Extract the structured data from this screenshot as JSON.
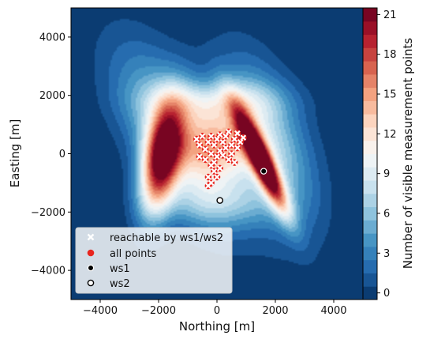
{
  "chart_data": {
    "type": "heatmap",
    "title": "",
    "xlabel": "Northing [m]",
    "ylabel": "Easting [m]",
    "xlim": [
      -5000,
      5000
    ],
    "ylim": [
      -5000,
      5000
    ],
    "xticks": [
      -4000,
      -2000,
      0,
      2000,
      4000
    ],
    "yticks": [
      4000,
      2000,
      0,
      -2000,
      -4000
    ],
    "xtick_labels": [
      "−4000",
      "−2000",
      "0",
      "2000",
      "4000"
    ],
    "ytick_labels": [
      "4000",
      "2000",
      "0",
      "−2000",
      "−4000"
    ],
    "colorbar": {
      "label": "Number of visible measurement points",
      "min": 0,
      "max": 22,
      "levels": 22,
      "ticks": [
        0,
        3,
        6,
        9,
        12,
        15,
        18,
        21
      ],
      "tick_labels": [
        "0",
        "3",
        "6",
        "9",
        "12",
        "15",
        "18",
        "21"
      ],
      "colormap": "RdBu_r"
    },
    "contour_field": {
      "background_value": 0,
      "blobs": [
        {
          "cx": -1900,
          "cy": -200,
          "sx": 450,
          "sy": 1300,
          "rot": -10,
          "amp": 20
        },
        {
          "cx": -1400,
          "cy": 600,
          "sx": 950,
          "sy": 2200,
          "rot": 30,
          "amp": 8
        },
        {
          "cx": 1500,
          "cy": -200,
          "sx": 250,
          "sy": 1300,
          "rot": 25,
          "amp": 22
        },
        {
          "cx": 1700,
          "cy": 300,
          "sx": 900,
          "sy": 2000,
          "rot": 20,
          "amp": 8
        },
        {
          "cx": 0,
          "cy": 300,
          "sx": 900,
          "sy": 900,
          "rot": 0,
          "amp": 10
        },
        {
          "cx": 0,
          "cy": 1800,
          "sx": 1500,
          "sy": 500,
          "rot": 0,
          "amp": 5
        },
        {
          "cx": 0,
          "cy": -1700,
          "sx": 1300,
          "sy": 600,
          "rot": 0,
          "amp": 4
        }
      ]
    },
    "series": [
      {
        "name": "reachable by ws1/ws2",
        "marker": "x",
        "color": "#ffffff",
        "points": [
          [
            -700,
            500
          ],
          [
            -600,
            300
          ],
          [
            -500,
            600
          ],
          [
            -400,
            150
          ],
          [
            -300,
            400
          ],
          [
            -200,
            600
          ],
          [
            -100,
            300
          ],
          [
            0,
            500
          ],
          [
            100,
            650
          ],
          [
            200,
            400
          ],
          [
            300,
            600
          ],
          [
            400,
            750
          ],
          [
            500,
            300
          ],
          [
            600,
            500
          ],
          [
            700,
            700
          ],
          [
            800,
            400
          ],
          [
            900,
            550
          ],
          [
            -600,
            -100
          ],
          [
            -400,
            -200
          ],
          [
            -200,
            0
          ],
          [
            -100,
            -300
          ],
          [
            0,
            -100
          ],
          [
            100,
            100
          ],
          [
            200,
            -50
          ],
          [
            300,
            200
          ],
          [
            400,
            -200
          ],
          [
            500,
            0
          ],
          [
            600,
            -300
          ],
          [
            -300,
            -800
          ],
          [
            -200,
            -1000
          ],
          [
            -100,
            -600
          ],
          [
            0,
            -800
          ],
          [
            100,
            -500
          ],
          [
            -300,
            -1100
          ],
          [
            -200,
            -400
          ],
          [
            700,
            200
          ]
        ]
      },
      {
        "name": "all points",
        "marker": "o",
        "color": "#e8251e",
        "points": [
          [
            -700,
            500
          ],
          [
            -600,
            300
          ],
          [
            -500,
            600
          ],
          [
            -400,
            150
          ],
          [
            -300,
            400
          ],
          [
            -200,
            600
          ],
          [
            -100,
            300
          ],
          [
            0,
            500
          ],
          [
            100,
            650
          ],
          [
            200,
            400
          ],
          [
            300,
            600
          ],
          [
            400,
            750
          ],
          [
            500,
            300
          ],
          [
            600,
            500
          ],
          [
            700,
            700
          ],
          [
            800,
            400
          ],
          [
            900,
            550
          ],
          [
            -600,
            -100
          ],
          [
            -400,
            -200
          ],
          [
            -200,
            0
          ],
          [
            -100,
            -300
          ],
          [
            0,
            -100
          ],
          [
            100,
            100
          ],
          [
            200,
            -50
          ],
          [
            300,
            200
          ],
          [
            400,
            -200
          ],
          [
            500,
            0
          ],
          [
            600,
            -300
          ],
          [
            -300,
            -800
          ],
          [
            -200,
            -1000
          ],
          [
            -100,
            -600
          ],
          [
            0,
            -800
          ],
          [
            100,
            -500
          ],
          [
            -300,
            -1100
          ],
          [
            -200,
            -400
          ],
          [
            700,
            200
          ]
        ]
      },
      {
        "name": "ws1",
        "marker": "o",
        "color": "#000000",
        "points": [
          [
            1600,
            -600
          ]
        ]
      },
      {
        "name": "ws2",
        "marker": "o",
        "color": "#ffffff",
        "points": [
          [
            100,
            -1600
          ]
        ]
      }
    ],
    "legend": {
      "placement": "lower-left",
      "entries": [
        "reachable by ws1/ws2",
        "all points",
        "ws1",
        "ws2"
      ]
    }
  }
}
